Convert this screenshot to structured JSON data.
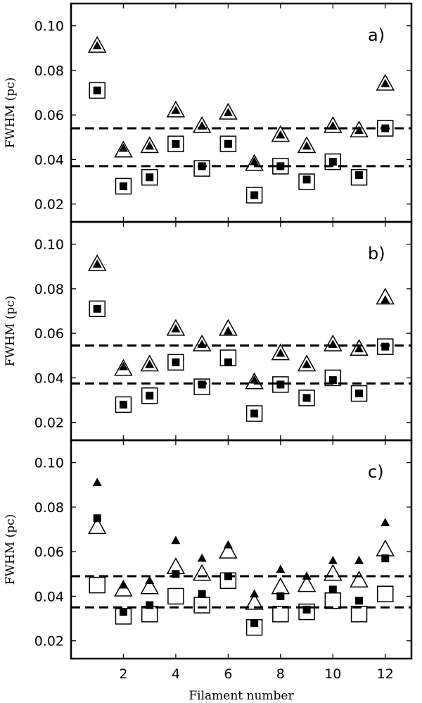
{
  "figure": {
    "xlabel": "Filament number",
    "ylabel": "FWHM (pc)"
  },
  "chart_data": [
    {
      "type": "scatter",
      "panel_label": "a)",
      "xlabel": "",
      "ylabel": "FWHM (pc)",
      "xlim": [
        0,
        13
      ],
      "ylim": [
        0.012,
        0.11
      ],
      "xticks": [
        2,
        4,
        6,
        8,
        10,
        12
      ],
      "yticks": [
        0.02,
        0.04,
        0.06,
        0.08,
        0.1
      ],
      "ytick_labels": [
        "0.02",
        "0.04",
        "0.06",
        "0.08",
        "0.10"
      ],
      "x": [
        1,
        2,
        3,
        4,
        5,
        6,
        7,
        8,
        9,
        10,
        11,
        12
      ],
      "series": [
        {
          "marker": "open-triangle",
          "values": [
            0.091,
            0.044,
            0.046,
            0.062,
            0.055,
            0.061,
            0.038,
            0.051,
            0.046,
            0.055,
            0.053,
            0.074
          ]
        },
        {
          "marker": "filled-triangle",
          "values": [
            0.091,
            0.045,
            0.046,
            0.062,
            0.055,
            0.061,
            0.039,
            0.051,
            0.046,
            0.055,
            0.053,
            0.074
          ]
        },
        {
          "marker": "open-square",
          "values": [
            0.071,
            0.028,
            0.032,
            0.047,
            0.036,
            0.047,
            0.024,
            0.037,
            0.03,
            0.039,
            0.032,
            0.054
          ]
        },
        {
          "marker": "filled-square",
          "values": [
            0.071,
            0.028,
            0.032,
            0.047,
            0.037,
            0.047,
            0.024,
            0.037,
            0.031,
            0.039,
            0.033,
            0.054
          ]
        }
      ],
      "hlines": [
        0.054,
        0.037
      ]
    },
    {
      "type": "scatter",
      "panel_label": "b)",
      "xlabel": "",
      "ylabel": "FWHM (pc)",
      "xlim": [
        0,
        13
      ],
      "ylim": [
        0.012,
        0.11
      ],
      "xticks": [
        2,
        4,
        6,
        8,
        10,
        12
      ],
      "yticks": [
        0.02,
        0.04,
        0.06,
        0.08,
        0.1
      ],
      "ytick_labels": [
        "0.02",
        "0.04",
        "0.06",
        "0.08",
        "0.10"
      ],
      "x": [
        1,
        2,
        3,
        4,
        5,
        6,
        7,
        8,
        9,
        10,
        11,
        12
      ],
      "series": [
        {
          "marker": "open-triangle",
          "values": [
            0.091,
            0.044,
            0.046,
            0.062,
            0.055,
            0.062,
            0.038,
            0.051,
            0.046,
            0.055,
            0.053,
            0.076
          ]
        },
        {
          "marker": "filled-triangle",
          "values": [
            0.091,
            0.045,
            0.046,
            0.062,
            0.055,
            0.061,
            0.039,
            0.051,
            0.046,
            0.055,
            0.053,
            0.075
          ]
        },
        {
          "marker": "open-square",
          "values": [
            0.071,
            0.028,
            0.032,
            0.047,
            0.036,
            0.049,
            0.024,
            0.037,
            0.031,
            0.04,
            0.033,
            0.054
          ]
        },
        {
          "marker": "filled-square",
          "values": [
            0.071,
            0.028,
            0.032,
            0.047,
            0.037,
            0.047,
            0.024,
            0.037,
            0.031,
            0.039,
            0.033,
            0.054
          ]
        }
      ],
      "hlines": [
        0.0545,
        0.0375
      ]
    },
    {
      "type": "scatter",
      "panel_label": "c)",
      "xlabel": "Filament number",
      "ylabel": "FWHM (pc)",
      "xlim": [
        0,
        13
      ],
      "ylim": [
        0.012,
        0.11
      ],
      "xticks": [
        2,
        4,
        6,
        8,
        10,
        12
      ],
      "xtick_labels": [
        "2",
        "4",
        "6",
        "8",
        "10",
        "12"
      ],
      "yticks": [
        0.02,
        0.04,
        0.06,
        0.08,
        0.1
      ],
      "ytick_labels": [
        "0.02",
        "0.04",
        "0.06",
        "0.08",
        "0.10"
      ],
      "x": [
        1,
        2,
        3,
        4,
        5,
        6,
        7,
        8,
        9,
        10,
        11,
        12
      ],
      "series": [
        {
          "marker": "open-triangle",
          "values": [
            0.071,
            0.043,
            0.044,
            0.053,
            0.05,
            0.06,
            0.037,
            0.044,
            0.045,
            0.05,
            0.047,
            0.061
          ]
        },
        {
          "marker": "filled-triangle",
          "values": [
            0.091,
            0.045,
            0.047,
            0.065,
            0.057,
            0.063,
            0.041,
            0.052,
            0.049,
            0.056,
            0.056,
            0.073
          ]
        },
        {
          "marker": "open-square",
          "values": [
            0.045,
            0.031,
            0.032,
            0.04,
            0.036,
            0.047,
            0.026,
            0.032,
            0.033,
            0.038,
            0.032,
            0.041
          ]
        },
        {
          "marker": "filled-square",
          "values": [
            0.075,
            0.033,
            0.036,
            0.05,
            0.041,
            0.049,
            0.028,
            0.04,
            0.034,
            0.043,
            0.038,
            0.057
          ]
        }
      ],
      "hlines": [
        0.049,
        0.035
      ]
    }
  ]
}
